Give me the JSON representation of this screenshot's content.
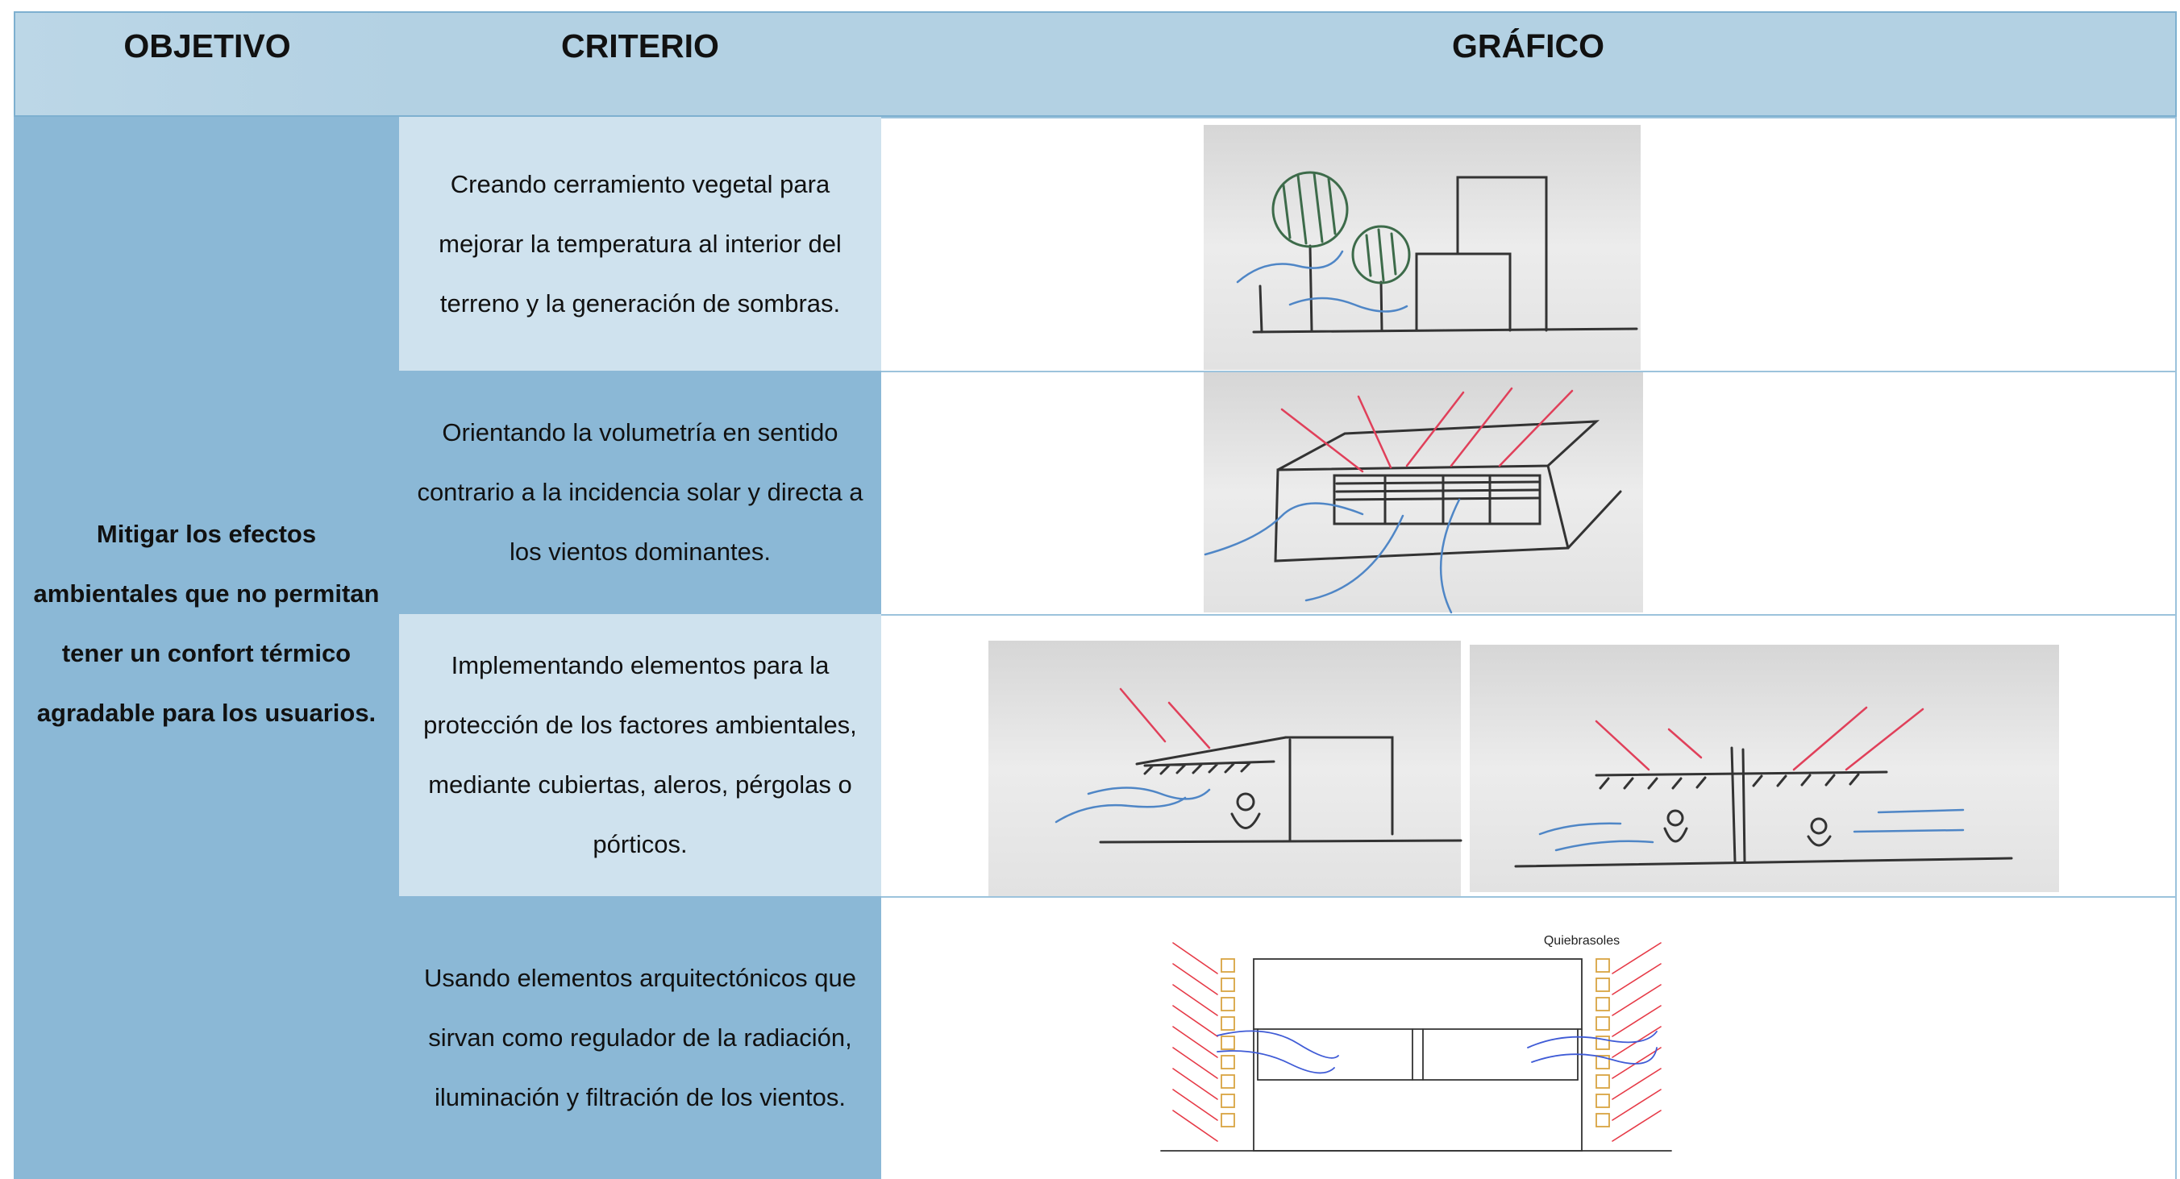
{
  "header": {
    "columns": [
      "OBJETIVO",
      "CRITERIO",
      "GRÁFICO"
    ]
  },
  "objective": "Mitigar los efectos ambientales que no permitan tener un confort térmico agradable para los usuarios.",
  "criteria": [
    "Creando cerramiento vegetal para mejorar la temperatura al interior del terreno y la generación de sombras.",
    "Orientando la volumetría en sentido contrario a la incidencia solar y directa a los vientos dominantes.",
    "Implementando elementos para la protección de los factores ambientales, mediante cubiertas, aleros, pérgolas o pórticos.",
    "Usando elementos arquitectónicos que sirvan como regulador de la radiación, iluminación y filtración de los vientos."
  ],
  "graphics": {
    "label": "Quiebrasoles"
  }
}
